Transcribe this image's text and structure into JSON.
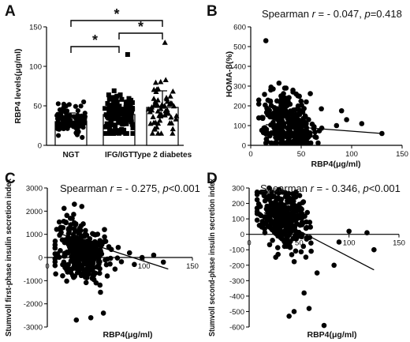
{
  "chart_data": [
    {
      "panel": "A",
      "type": "bar",
      "ylabel": "RBP4 levels(μg/ml)",
      "ylim": [
        0,
        150
      ],
      "yticks": [
        "0",
        "50",
        "100",
        "150"
      ],
      "categories": [
        "NGT",
        "IFG/IGT",
        "Type 2 diabetes"
      ],
      "bar_means": [
        30,
        39,
        48
      ],
      "bar_sd": [
        11,
        17,
        21
      ],
      "markers": [
        "circle",
        "square",
        "triangle"
      ],
      "point_ranges": [
        [
          10,
          55
        ],
        [
          15,
          115
        ],
        [
          15,
          130
        ]
      ],
      "point_counts": [
        110,
        150,
        60
      ],
      "significance": [
        {
          "from": 0,
          "to": 2,
          "label": "*",
          "level": 158
        },
        {
          "from": 0,
          "to": 1,
          "label": "*",
          "level": 125
        },
        {
          "from": 1,
          "to": 2,
          "label": "*",
          "level": 142
        }
      ]
    },
    {
      "panel": "B",
      "type": "scatter",
      "annotation": {
        "prefix": "Spearman ",
        "r_sym": "r",
        "r_val": " = - 0.047, ",
        "p_sym": "p",
        "p_val": "=0.418"
      },
      "xlabel": "RBP4(μg/ml)",
      "ylabel": "HOMA-β(%)",
      "xlim": [
        0,
        150
      ],
      "ylim": [
        0,
        600
      ],
      "xticks": [
        "0",
        "50",
        "100",
        "150"
      ],
      "yticks": [
        "0",
        "100",
        "200",
        "300",
        "400",
        "500",
        "600"
      ],
      "cloud": {
        "x_center": 35,
        "x_spread": 13,
        "y_center": 100,
        "y_spread": 75,
        "count": 320
      },
      "outliers": [
        [
          15,
          530
        ],
        [
          28,
          315
        ],
        [
          35,
          290
        ],
        [
          45,
          260
        ],
        [
          30,
          250
        ],
        [
          55,
          220
        ],
        [
          70,
          185
        ],
        [
          90,
          175
        ],
        [
          95,
          130
        ],
        [
          110,
          110
        ],
        [
          130,
          60
        ],
        [
          85,
          100
        ]
      ],
      "trend": {
        "x": [
          15,
          130
        ],
        "y": [
          105,
          60
        ]
      }
    },
    {
      "panel": "C",
      "type": "scatter",
      "annotation": {
        "prefix": "Spearman ",
        "r_sym": "r",
        "r_val": " = - 0.275, ",
        "p_sym": "p",
        "p_val": "<0.001"
      },
      "xlabel": "RBP4(μg/ml)",
      "ylabel": "Stumvoll first-phase insulin secretion index",
      "xlim": [
        0,
        150
      ],
      "ylim": [
        -3000,
        3000
      ],
      "xticks": [
        "0",
        "50",
        "100",
        "150"
      ],
      "yticks": [
        "-3000",
        "-2000",
        "-1000",
        "0",
        "1000",
        "2000",
        "3000"
      ],
      "cloud": {
        "x_center": 35,
        "x_spread": 13,
        "y_center": 300,
        "y_spread": 650,
        "count": 320
      },
      "outliers": [
        [
          28,
          2300
        ],
        [
          30,
          -2700
        ],
        [
          45,
          -2600
        ],
        [
          58,
          -2400
        ],
        [
          55,
          -1500
        ],
        [
          62,
          -800
        ],
        [
          70,
          -500
        ],
        [
          85,
          200
        ],
        [
          90,
          -300
        ],
        [
          110,
          100
        ],
        [
          120,
          -200
        ],
        [
          98,
          0
        ]
      ],
      "trend": {
        "x": [
          15,
          125
        ],
        "y": [
          1000,
          -500
        ]
      }
    },
    {
      "panel": "D",
      "type": "scatter",
      "annotation": {
        "prefix": "Spearman ",
        "r_sym": "r",
        "r_val": " = - 0.346, ",
        "p_sym": "p",
        "p_val": "<0.001"
      },
      "xlabel": "RBP4(μg/ml)",
      "ylabel": "Stumvoll second-phase insulin secretion index",
      "xlim": [
        0,
        150
      ],
      "ylim": [
        -600,
        300
      ],
      "xticks": [
        "0",
        "50",
        "100",
        "150"
      ],
      "yticks": [
        "-600",
        "-500",
        "-400",
        "-300",
        "-200",
        "-100",
        "0",
        "100",
        "200",
        "300"
      ],
      "cloud": {
        "x_center": 35,
        "x_spread": 13,
        "y_center": 100,
        "y_spread": 90,
        "count": 320
      },
      "outliers": [
        [
          20,
          300
        ],
        [
          30,
          290
        ],
        [
          40,
          -530
        ],
        [
          45,
          -500
        ],
        [
          60,
          -480
        ],
        [
          75,
          -590
        ],
        [
          55,
          -380
        ],
        [
          68,
          -250
        ],
        [
          85,
          -200
        ],
        [
          90,
          -50
        ],
        [
          100,
          20
        ],
        [
          118,
          10
        ],
        [
          125,
          -100
        ]
      ],
      "trend": {
        "x": [
          15,
          125
        ],
        "y": [
          140,
          -230
        ]
      }
    }
  ]
}
